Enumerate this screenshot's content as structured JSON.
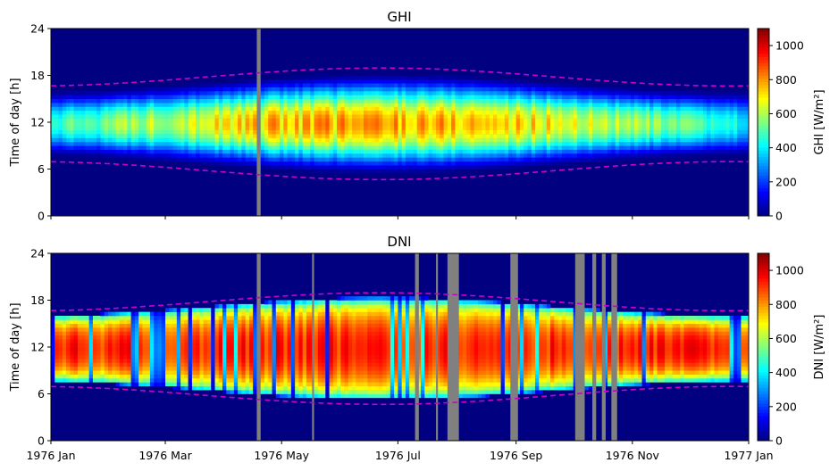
{
  "chart_data": [
    {
      "type": "heatmap",
      "title": "GHI",
      "ylabel": "Time of day [h]",
      "y_ticks": [
        "0",
        "6",
        "12",
        "18",
        "24"
      ],
      "ylim": [
        0,
        24
      ],
      "x_ticks": [
        "",
        "",
        "",
        "",
        "",
        "",
        ""
      ],
      "colorbar": {
        "label": "GHI [W/m²]",
        "ticks": [
          "0",
          "200",
          "400",
          "600",
          "800",
          "1000"
        ],
        "range": [
          0,
          1100
        ],
        "colormap": "jet"
      },
      "peak_value": 900,
      "missing_color": "#808080",
      "missing_days": [
        [
          108,
          110
        ]
      ],
      "sunrise_curve_color": "#cc00cc"
    },
    {
      "type": "heatmap",
      "title": "DNI",
      "ylabel": "Time of day [h]",
      "y_ticks": [
        "0",
        "6",
        "12",
        "18",
        "24"
      ],
      "ylim": [
        0,
        24
      ],
      "x_ticks": [
        "1976 Jan",
        "1976 Mar",
        "1976 May",
        "1976 Jul",
        "1976 Sep",
        "1976 Nov",
        "1977 Jan"
      ],
      "colorbar": {
        "label": "DNI [W/m²]",
        "ticks": [
          "0",
          "200",
          "400",
          "600",
          "800",
          "1000"
        ],
        "range": [
          0,
          1100
        ],
        "colormap": "jet"
      },
      "peak_value": 1000,
      "missing_color": "#808080",
      "missing_days": [
        [
          108,
          110
        ],
        [
          137,
          138
        ],
        [
          191,
          193
        ],
        [
          202,
          203
        ],
        [
          208,
          214
        ],
        [
          241,
          245
        ],
        [
          275,
          280
        ],
        [
          284,
          286
        ],
        [
          289,
          291
        ],
        [
          294,
          297
        ]
      ],
      "sunrise_curve_color": "#cc00cc"
    }
  ]
}
